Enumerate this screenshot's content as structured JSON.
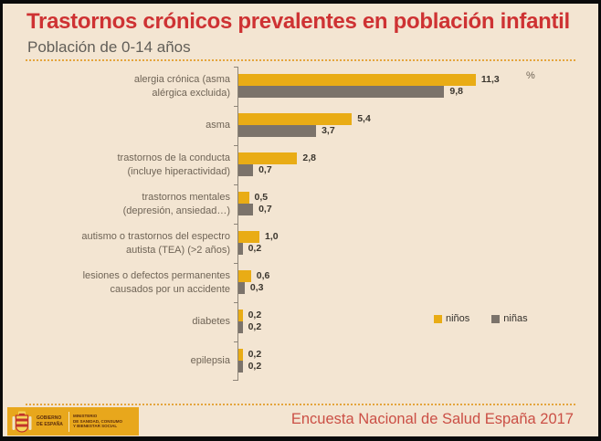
{
  "header": {
    "title": "Trastornos crónicos prevalentes en población infantil",
    "subtitle": "Población de 0-14 años"
  },
  "chart_data": {
    "type": "bar",
    "orientation": "horizontal",
    "title": "Trastornos crónicos prevalentes en población infantil",
    "subtitle": "Población de 0-14 años",
    "unit_label": "%",
    "xlim": [
      0,
      11.5
    ],
    "grid": false,
    "legend_position": "middle-right",
    "categories": [
      "alergia crónica (asma\nalérgica excluida)",
      "asma",
      "trastornos de la conducta\n(incluye hiperactividad)",
      "trastornos mentales\n(depresión, ansiedad…)",
      "autismo o trastornos del espectro\nautista (TEA) (>2 años)",
      "lesiones o defectos permanentes\ncausados por un accidente",
      "diabetes",
      "epilepsia"
    ],
    "series": [
      {
        "name": "niños",
        "color": "#E9AC15",
        "values": [
          11.3,
          5.4,
          2.8,
          0.5,
          1.0,
          0.6,
          0.2,
          0.2
        ],
        "value_labels": [
          "11,3",
          "5,4",
          "2,8",
          "0,5",
          "1,0",
          "0,6",
          "0,2",
          "0,2"
        ]
      },
      {
        "name": "niñas",
        "color": "#7B736B",
        "values": [
          9.8,
          3.7,
          0.7,
          0.7,
          0.2,
          0.3,
          0.2,
          0.2
        ],
        "value_labels": [
          "9,8",
          "3,7",
          "0,7",
          "0,7",
          "0,2",
          "0,3",
          "0,2",
          "0,2"
        ]
      }
    ]
  },
  "footer": {
    "logo": {
      "government_line1": "GOBIERNO",
      "government_line2": "DE ESPAÑA",
      "ministry_line1": "MINISTERIO",
      "ministry_line2": "DE SANIDAD, CONSUMO",
      "ministry_line3": "Y BIENESTAR SOCIAL"
    },
    "source": "Encuesta Nacional de Salud España 2017"
  },
  "colors": {
    "background": "#F3E5D2",
    "frame_border": "#0A0A0A",
    "title": "#CE3233",
    "subtitle": "#615E58",
    "bar_ninos": "#E9AC15",
    "bar_ninas": "#7B736B",
    "axis": "#8D8579",
    "category_label": "#6F6456",
    "value_label": "#3B362E",
    "divider_dotted": "#E4A53C",
    "logo_background": "#E8A71C",
    "source_text": "#CB4F45"
  }
}
